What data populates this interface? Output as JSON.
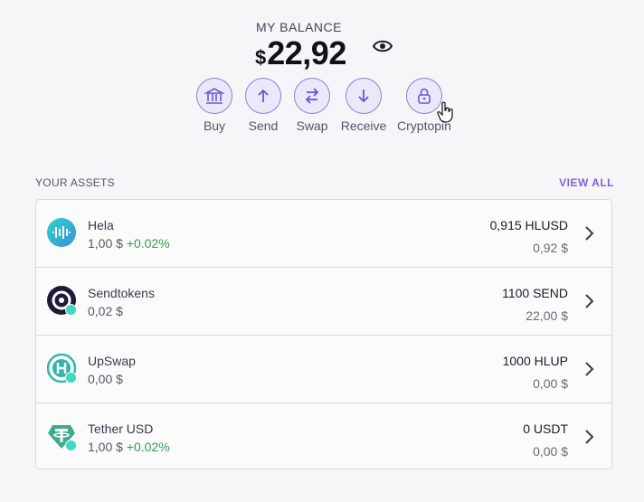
{
  "balance": {
    "label": "MY BALANCE",
    "currency_symbol": "$",
    "amount": "22,92",
    "visibility_icon": "eye-icon"
  },
  "actions": [
    {
      "label": "Buy",
      "icon": "bank-icon"
    },
    {
      "label": "Send",
      "icon": "arrow-up-icon"
    },
    {
      "label": "Swap",
      "icon": "swap-icon"
    },
    {
      "label": "Receive",
      "icon": "arrow-down-icon"
    },
    {
      "label": "Cryptopin",
      "icon": "lock-icon"
    }
  ],
  "assets": {
    "title": "YOUR ASSETS",
    "view_all": "VIEW ALL",
    "items": [
      {
        "name": "Hela",
        "price": "1,00 $",
        "change": "+0.02%",
        "amount": "0,915 HLUSD",
        "fiat": "0,92 $"
      },
      {
        "name": "Sendtokens",
        "price": "0,02 $",
        "change": "",
        "amount": "1100 SEND",
        "fiat": "22,00 $"
      },
      {
        "name": "UpSwap",
        "price": "0,00 $",
        "change": "",
        "amount": "1000 HLUP",
        "fiat": "0,00 $"
      },
      {
        "name": "Tether USD",
        "price": "1,00 $",
        "change": "+0.02%",
        "amount": "0 USDT",
        "fiat": "0,00 $"
      }
    ]
  },
  "colors": {
    "accent": "#7b63e0",
    "positive": "#2f9e4f",
    "badge": "#3fd6c4"
  }
}
